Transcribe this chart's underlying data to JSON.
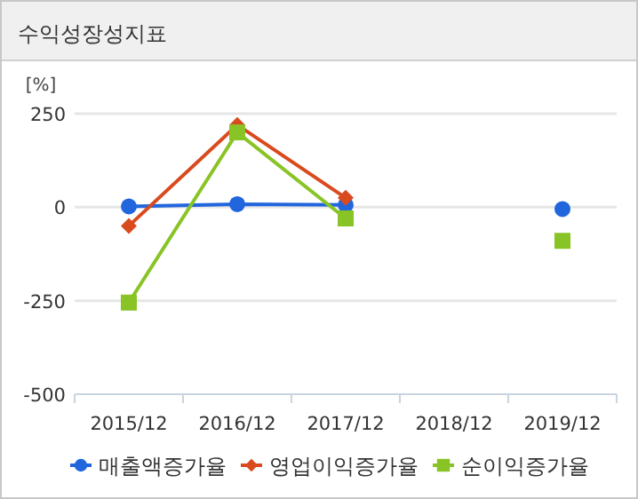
{
  "chart_data": {
    "type": "line",
    "title": "수익성장성지표",
    "ylabel": "[%]",
    "categories": [
      "2015/12",
      "2016/12",
      "2017/12",
      "2018/12",
      "2019/12"
    ],
    "series": [
      {
        "name": "매출액증가율",
        "color": "#2266dd",
        "marker": "circle",
        "values": [
          2,
          8,
          6,
          null,
          -5
        ]
      },
      {
        "name": "영업이익증가율",
        "color": "#d94a1e",
        "marker": "diamond",
        "values": [
          -50,
          220,
          25,
          null,
          null
        ]
      },
      {
        "name": "순이익증가율",
        "color": "#88c425",
        "marker": "square",
        "values": [
          -255,
          200,
          -30,
          null,
          -90
        ]
      }
    ],
    "ylim": [
      -500,
      250
    ],
    "yticks": [
      -500,
      -250,
      0,
      250
    ],
    "grid": "y",
    "legend": "bottom"
  }
}
